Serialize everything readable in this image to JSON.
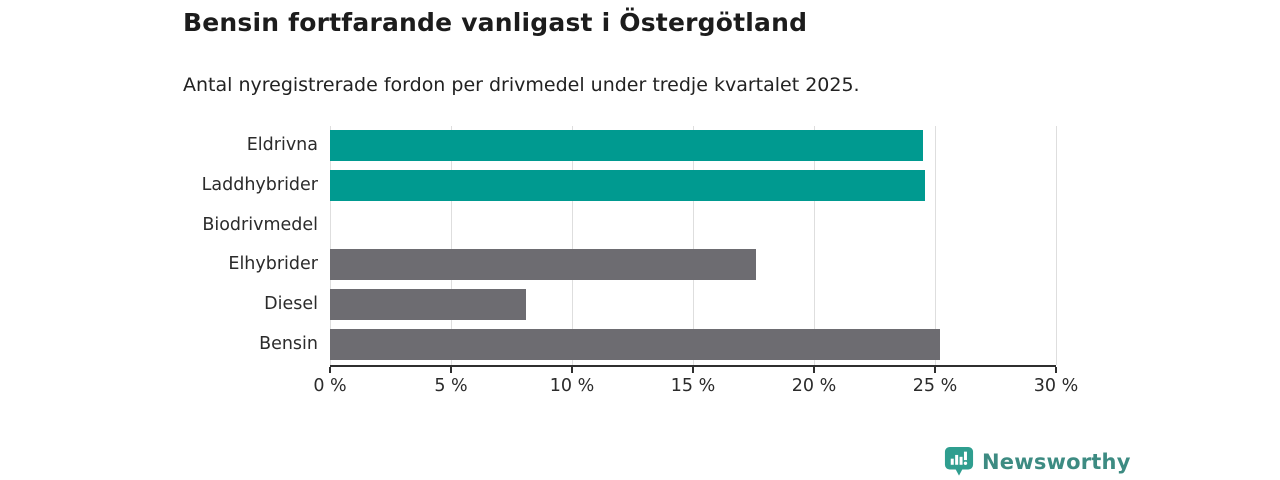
{
  "header": {
    "title": "Bensin fortfarande vanligast i Östergötland",
    "subtitle": "Antal nyregistrerade fordon per drivmedel under tredje kvartalet 2025."
  },
  "chart_data": {
    "type": "bar",
    "orientation": "horizontal",
    "title": "Bensin fortfarande vanligast i Östergötland",
    "subtitle": "Antal nyregistrerade fordon per drivmedel under tredje kvartalet 2025.",
    "categories": [
      "Eldrivna",
      "Laddhybrider",
      "Biodrivmedel",
      "Elhybrider",
      "Diesel",
      "Bensin"
    ],
    "values": [
      24.5,
      24.6,
      0,
      17.6,
      8.1,
      25.2
    ],
    "unit": "%",
    "xlim": [
      0,
      30
    ],
    "x_tick_values": [
      0,
      5,
      10,
      15,
      20,
      25,
      30
    ],
    "x_tick_labels": [
      "0 %",
      "5 %",
      "10 %",
      "15 %",
      "20 %",
      "25 %",
      "30 %"
    ],
    "grid": true,
    "legend": "none",
    "highlight_color": "#009a90",
    "default_color": "#6d6c71",
    "bar_colors": [
      "#009a90",
      "#009a90",
      "#6d6c71",
      "#6d6c71",
      "#6d6c71",
      "#6d6c71"
    ]
  },
  "footer": {
    "brand": "Newsworthy",
    "brand_icon": "newsworthy-chart-bubble-icon",
    "brand_text_color": "#3d8b82",
    "brand_icon_color": "#2f9e8f"
  }
}
